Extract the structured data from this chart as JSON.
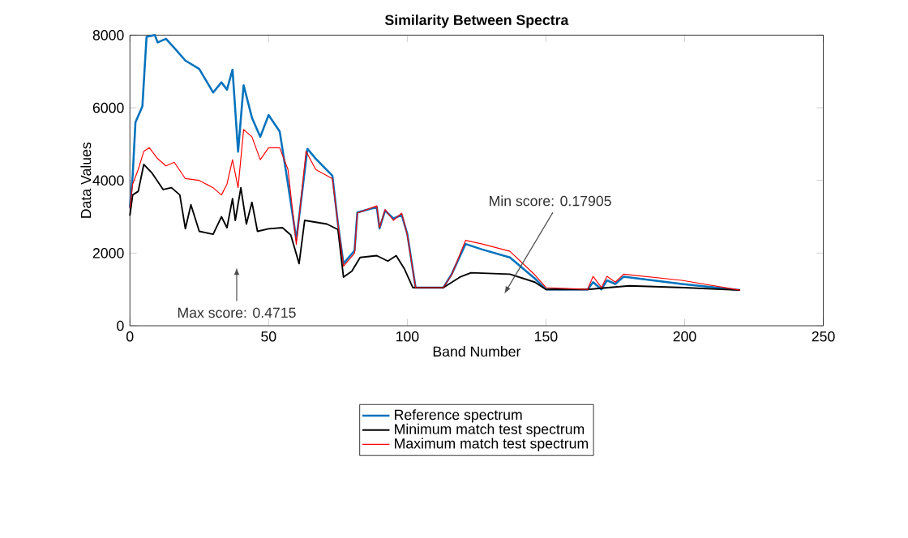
{
  "chart_data": {
    "type": "line",
    "title": "Similarity Between Spectra",
    "xlabel": "Band Number",
    "ylabel": "Data Values",
    "xlim": [
      0,
      250
    ],
    "xticks": [
      0,
      50,
      100,
      150,
      200,
      250
    ],
    "ylim": [
      0,
      8000
    ],
    "yticks": [
      0,
      2000,
      4000,
      6000,
      8000
    ],
    "legend": "bottom",
    "grid": false,
    "series": [
      {
        "name": "Reference spectrum",
        "color": "#0072bd",
        "x": [
          0,
          1,
          2,
          4.5,
          6,
          9,
          10,
          13,
          16,
          20,
          25,
          30,
          33,
          35,
          37,
          39,
          41,
          44,
          47,
          50,
          54,
          57,
          60,
          64,
          67,
          73,
          75,
          77,
          81,
          82,
          89,
          90,
          92,
          95,
          98,
          100,
          103,
          113,
          116,
          121,
          127,
          137,
          146,
          150,
          165,
          167,
          170,
          172,
          175,
          178,
          199,
          220
        ],
        "values": [
          3250,
          4130,
          5600,
          6040,
          7950,
          8000,
          7800,
          7900,
          7650,
          7300,
          7070,
          6420,
          6700,
          6500,
          7050,
          4790,
          6620,
          5730,
          5200,
          5800,
          5350,
          3900,
          2370,
          4870,
          4600,
          4130,
          2810,
          1710,
          2070,
          3120,
          3270,
          2680,
          3170,
          2950,
          3050,
          2530,
          1050,
          1050,
          1420,
          2250,
          2100,
          1880,
          1300,
          1000,
          1000,
          1200,
          1000,
          1250,
          1150,
          1350,
          1150,
          980
        ]
      },
      {
        "name": "Minimum match test spectrum",
        "color": "#000000",
        "x": [
          0,
          1,
          3,
          5,
          8,
          12,
          15,
          18,
          20,
          22,
          25,
          30,
          33,
          35,
          37,
          38,
          40,
          42,
          44,
          46,
          50,
          55,
          58,
          61,
          63,
          71,
          75,
          77,
          80,
          83,
          89,
          93,
          96,
          99,
          102,
          113,
          119,
          123,
          137,
          146,
          150,
          165,
          180,
          200,
          220
        ],
        "values": [
          3030,
          3600,
          3700,
          4440,
          4200,
          3750,
          3800,
          3600,
          2670,
          3330,
          2600,
          2520,
          3000,
          2700,
          3500,
          2900,
          3800,
          2800,
          3400,
          2600,
          2670,
          2700,
          2500,
          1710,
          2900,
          2800,
          2650,
          1340,
          1500,
          1880,
          1930,
          1780,
          1930,
          1560,
          1050,
          1050,
          1340,
          1460,
          1420,
          1200,
          1000,
          1000,
          1100,
          1050,
          980
        ]
      },
      {
        "name": "Maximum match test spectrum",
        "color": "#ff0000",
        "x": [
          0,
          1,
          3,
          5,
          7,
          10,
          13,
          16,
          20,
          25,
          30,
          33,
          35,
          37,
          39,
          41,
          44,
          47,
          50,
          54,
          57,
          60,
          63.5,
          67,
          73,
          75,
          77,
          81,
          82,
          89,
          90,
          92,
          95,
          98,
          100,
          103,
          113,
          116,
          121,
          127,
          137,
          146,
          150,
          165,
          167,
          170,
          172,
          175,
          178,
          199,
          220
        ],
        "values": [
          3250,
          3900,
          4300,
          4800,
          4900,
          4600,
          4400,
          4500,
          4050,
          4000,
          3800,
          3600,
          3900,
          4570,
          3800,
          5400,
          5200,
          4570,
          4900,
          4900,
          4300,
          2240,
          4800,
          4300,
          4050,
          2810,
          1640,
          2000,
          3100,
          3300,
          2700,
          3200,
          2900,
          3100,
          2500,
          1050,
          1050,
          1400,
          2350,
          2250,
          2050,
          1400,
          1050,
          1000,
          1360,
          1050,
          1360,
          1200,
          1420,
          1250,
          980
        ]
      }
    ],
    "annotations": [
      "Max score: 0.4715",
      "Min score: 0.17905"
    ]
  }
}
